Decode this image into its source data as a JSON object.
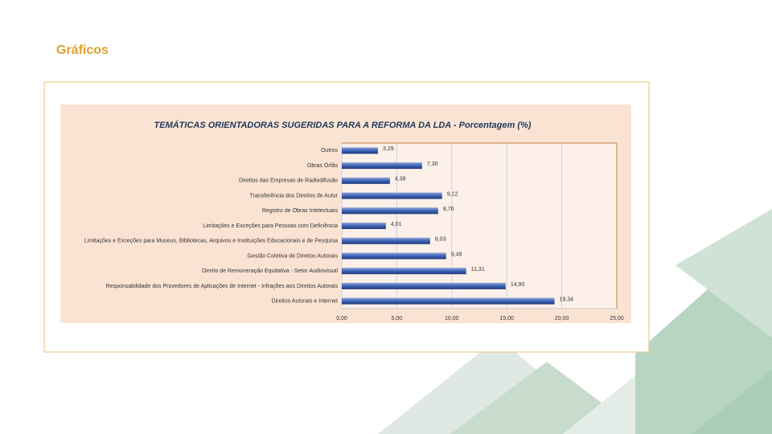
{
  "slide": {
    "title": "Gráficos"
  },
  "chart_data": {
    "type": "hbar",
    "title": "TEMÁTICAS ORIENTADORAS SUGERIDAS PARA A REFORMA DA LDA - Porcentagem (%)",
    "categories": [
      "Outros",
      "Obras Órfãs",
      "Direitos das Empresas de Radiodifusão",
      "Transferência dos Direitos de Autor",
      "Registro de Obras Intelectuais",
      "Limitações e Exceções para Pessoas com Deficiência",
      "Limitações e Exceções para Museus, Bibliotecas, Arquivos e Instituições Educacionais e de Pesquisa",
      "Gestão Coletiva de Direitos Autorais",
      "Direito de Remuneração Equitativa - Setor Audiovisual",
      "Responsabilidade dos Provedores de Aplicações de Internet - Infrações aos Direitos Autorais",
      "Direitos Autorais e Internet"
    ],
    "values": [
      3.29,
      7.3,
      4.38,
      9.12,
      8.76,
      4.01,
      8.03,
      9.49,
      11.31,
      14.9,
      19.34
    ],
    "value_labels": [
      "3,29",
      "7,30",
      "4,38",
      "9,12",
      "8,76",
      "4,01",
      "8,03",
      "9,49",
      "11,31",
      "14,90",
      "19,34"
    ],
    "color": "#3d62b5",
    "xlim": [
      0,
      25
    ],
    "xticks": [
      {
        "value": 0,
        "label": "0,00"
      },
      {
        "value": 5,
        "label": "5,00"
      },
      {
        "value": 10,
        "label": "10,00"
      },
      {
        "value": 15,
        "label": "15,00"
      },
      {
        "value": 20,
        "label": "20,00"
      },
      {
        "value": 25,
        "label": "25,00"
      }
    ],
    "grid": true
  }
}
